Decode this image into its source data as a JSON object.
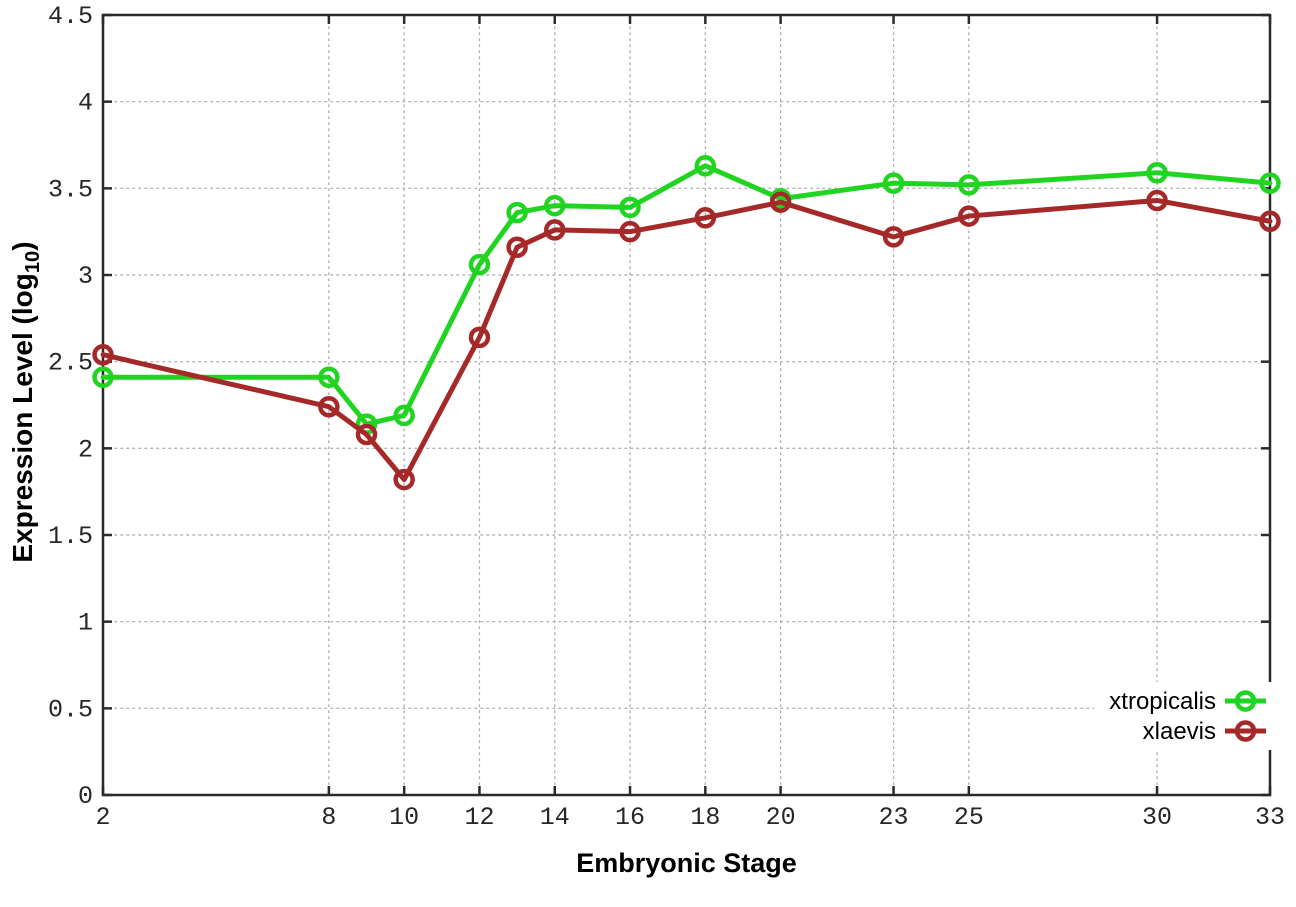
{
  "figure": {
    "background": "#ffffff",
    "ylabel_prefix": "Expression Level (log",
    "ylabel_sub": "10",
    "ylabel_suffix": ")"
  },
  "chart_data": {
    "type": "line",
    "title": "",
    "xlabel": "Embryonic Stage",
    "ylabel": "Expression Level (log10)",
    "xlim": [
      2,
      33
    ],
    "ylim": [
      0,
      4.5
    ],
    "grid": true,
    "grid_style": "dotted",
    "legend_position": "bottom-right",
    "marker_style": "open-circle",
    "x_ticks": [
      2,
      8,
      10,
      12,
      14,
      16,
      18,
      20,
      23,
      25,
      30,
      33
    ],
    "y_ticks": [
      "0",
      "0.5",
      "1",
      "1.5",
      "2",
      "2.5",
      "3",
      "3.5",
      "4",
      "4.5"
    ],
    "x": [
      2,
      8,
      9,
      10,
      12,
      13,
      14,
      16,
      18,
      20,
      23,
      25,
      30,
      33
    ],
    "series": [
      {
        "name": "xtropicalis",
        "color": "#22d422",
        "values": [
          2.41,
          2.41,
          2.14,
          2.19,
          3.06,
          3.36,
          3.4,
          3.39,
          3.63,
          3.44,
          3.53,
          3.52,
          3.59,
          3.53
        ]
      },
      {
        "name": "xlaevis",
        "color": "#a62929",
        "values": [
          2.54,
          2.24,
          2.08,
          1.82,
          2.64,
          3.16,
          3.26,
          3.25,
          3.33,
          3.42,
          3.22,
          3.34,
          3.43,
          3.31
        ]
      }
    ],
    "colors": {
      "border": "#2b2b2b",
      "grid": "#b0b0b0",
      "tick_label": "#262626"
    }
  }
}
